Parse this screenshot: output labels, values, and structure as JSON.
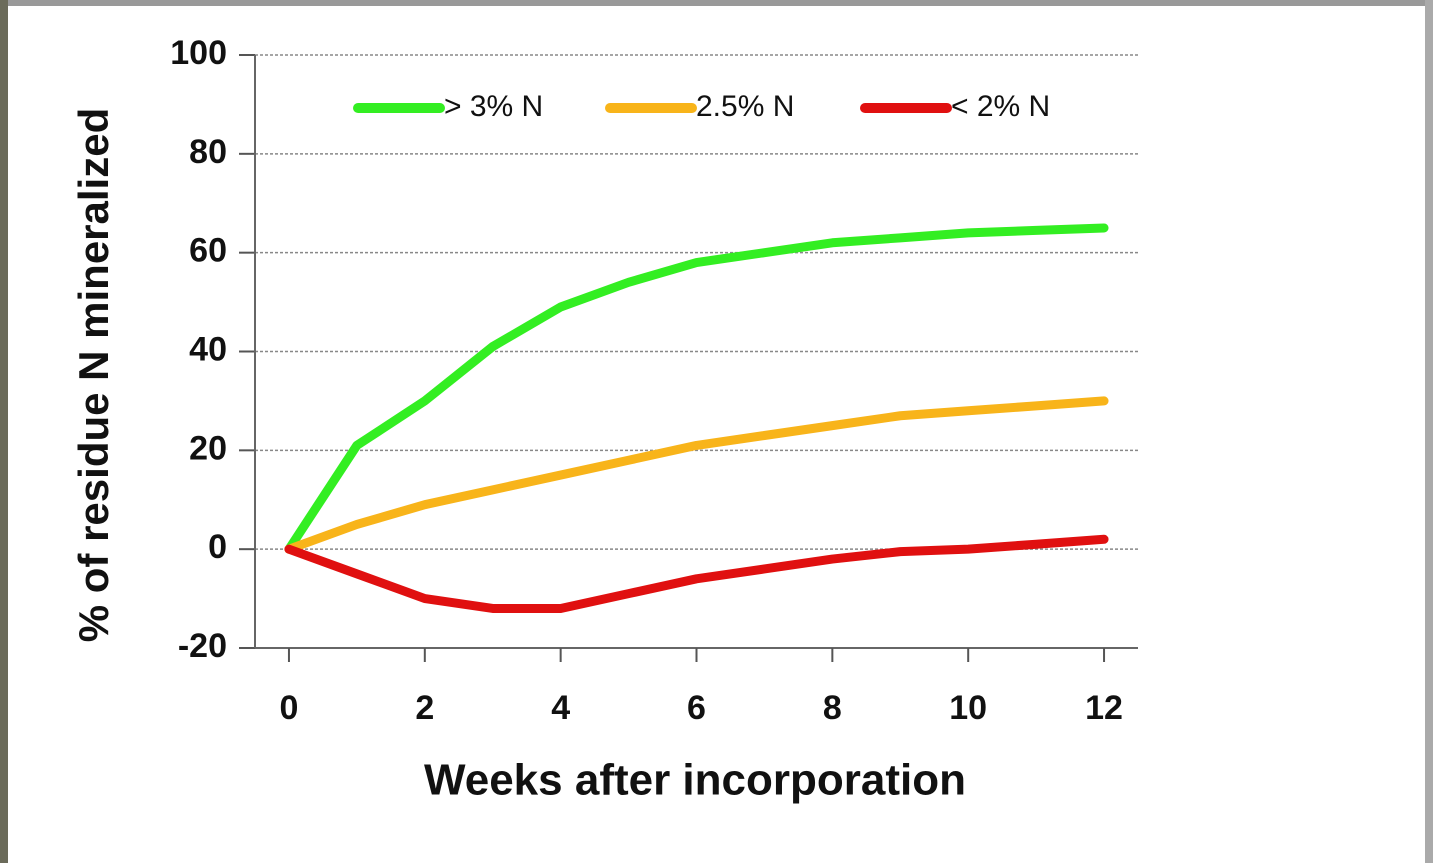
{
  "chart_data": {
    "type": "line",
    "x_label": "Weeks after incorporation",
    "y_label": "% of residue N mineralized",
    "x": [
      0,
      1,
      2,
      3,
      4,
      5,
      6,
      7,
      8,
      9,
      10,
      11,
      12
    ],
    "series": [
      {
        "name": "> 3% N",
        "color": "#33ee22",
        "values": [
          0,
          21,
          30,
          41,
          49,
          54,
          58,
          60,
          62,
          63,
          64,
          64.5,
          65
        ]
      },
      {
        "name": "2.5% N",
        "color": "#f8b41a",
        "values": [
          0,
          5,
          9,
          12,
          15,
          18,
          21,
          23,
          25,
          27,
          28,
          29,
          30
        ]
      },
      {
        "name": "< 2% N",
        "color": "#e01010",
        "values": [
          0,
          -5,
          -10,
          -12,
          -12,
          -9,
          -6,
          -4,
          -2,
          -0.5,
          0,
          1,
          2
        ]
      }
    ],
    "xlim": [
      -0.5,
      12.5
    ],
    "xticks": [
      0,
      2,
      4,
      6,
      8,
      10,
      12
    ],
    "ylim": [
      -20,
      100
    ],
    "yticks": [
      -20,
      0,
      20,
      40,
      60,
      80,
      100
    ],
    "grid": true,
    "legend": "top"
  }
}
